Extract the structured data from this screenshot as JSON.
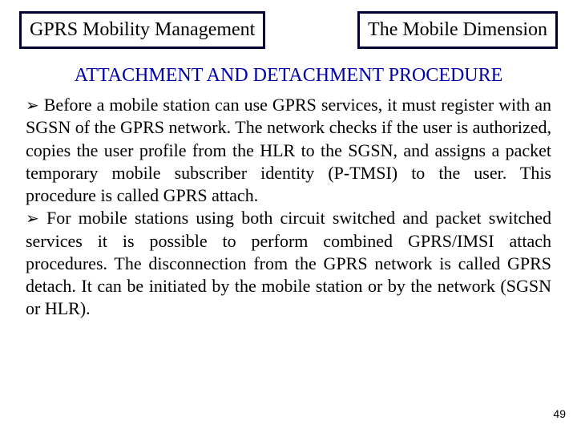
{
  "colors": {
    "box_border": "#000033",
    "title_text": "#0000aa",
    "body_text": "#000000",
    "background": "#ffffff"
  },
  "typography": {
    "box_fontsize_pt": 18,
    "title_fontsize_pt": 18,
    "body_fontsize_pt": 16,
    "pagenum_fontsize_pt": 10,
    "font_family": "Times New Roman",
    "pagenum_font_family": "Arial"
  },
  "header": {
    "left_box": "GPRS Mobility Management",
    "right_box": "The Mobile Dimension"
  },
  "section_title": "ATTACHMENT AND DETACHMENT PROCEDURE",
  "bullets": [
    {
      "glyph": "➢",
      "text": "Before a mobile station can use GPRS services, it must register with an SGSN of the GPRS network. The network checks if the user is authorized, copies the user profile from the HLR to the SGSN, and assigns a packet temporary mobile subscriber identity (P-TMSI) to the user. This procedure is called GPRS attach."
    },
    {
      "glyph": "➢",
      "text": "For mobile stations using both circuit switched and packet switched services it is possible to perform combined GPRS/IMSI attach procedures. The disconnection from the GPRS network is called GPRS detach. It can be initiated by the mobile station or by the network (SGSN or HLR)."
    }
  ],
  "page_number": "49"
}
